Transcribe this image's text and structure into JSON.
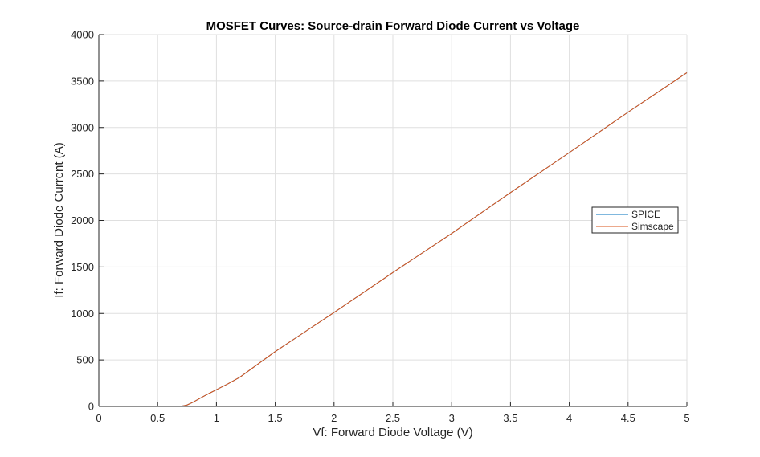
{
  "chart_data": {
    "type": "line",
    "title": "MOSFET Curves: Source-drain Forward Diode Current vs Voltage",
    "xlabel": "Vf: Forward Diode Voltage (V)",
    "ylabel": "If: Forward Diode Current (A)",
    "xlim": [
      0,
      5
    ],
    "ylim": [
      0,
      4000
    ],
    "xticks": [
      0,
      0.5,
      1,
      1.5,
      2,
      2.5,
      3,
      3.5,
      4,
      4.5,
      5
    ],
    "xtick_labels": [
      "0",
      "0.5",
      "1",
      "1.5",
      "2",
      "2.5",
      "3",
      "3.5",
      "4",
      "4.5",
      "5"
    ],
    "yticks": [
      0,
      500,
      1000,
      1500,
      2000,
      2500,
      3000,
      3500,
      4000
    ],
    "ytick_labels": [
      "0",
      "500",
      "1000",
      "1500",
      "2000",
      "2500",
      "3000",
      "3500",
      "4000"
    ],
    "grid": true,
    "legend_position": "east",
    "series": [
      {
        "name": "SPICE",
        "color": "#0072BD",
        "x": [
          0,
          0.5,
          0.65,
          0.7,
          0.75,
          0.8,
          0.85,
          0.9,
          0.95,
          1.0,
          1.1,
          1.2,
          1.5,
          2.0,
          2.5,
          3.0,
          3.5,
          4.0,
          4.5,
          5.0
        ],
        "y": [
          0,
          0,
          0,
          2,
          15,
          45,
          80,
          115,
          148,
          180,
          245,
          315,
          590,
          1010,
          1440,
          1860,
          2300,
          2730,
          3165,
          3590
        ]
      },
      {
        "name": "Simscape",
        "color": "#D95319",
        "x": [
          0,
          0.5,
          0.65,
          0.7,
          0.75,
          0.8,
          0.85,
          0.9,
          0.95,
          1.0,
          1.1,
          1.2,
          1.5,
          2.0,
          2.5,
          3.0,
          3.5,
          4.0,
          4.5,
          5.0
        ],
        "y": [
          0,
          0,
          0,
          2,
          15,
          45,
          80,
          115,
          148,
          180,
          245,
          315,
          590,
          1010,
          1440,
          1860,
          2300,
          2730,
          3165,
          3590
        ]
      }
    ]
  }
}
